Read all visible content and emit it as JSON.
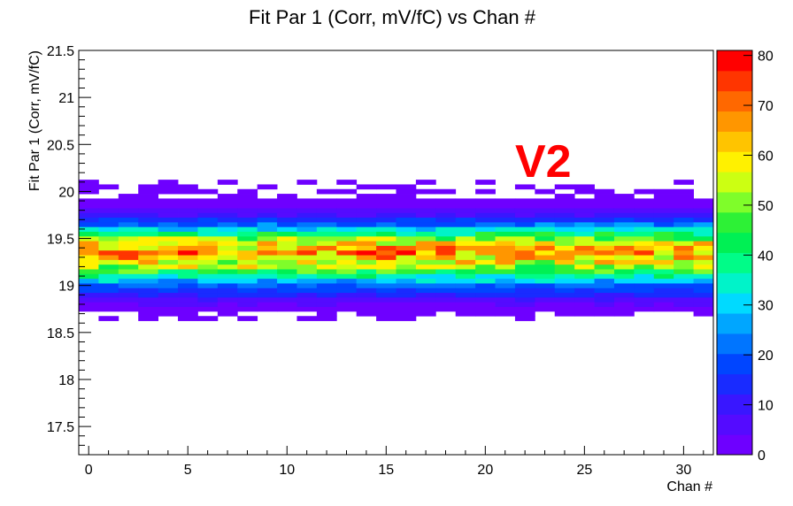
{
  "chart_data": {
    "type": "heatmap",
    "title": "Fit Par 1 (Corr, mV/fC) vs Chan #",
    "xlabel": "Chan #",
    "ylabel": "Fit Par 1 (Corr, mV/fC)",
    "annotation": "V2",
    "xlim": [
      -0.5,
      31.5
    ],
    "ylim": [
      17.2,
      21.5
    ],
    "x_ticks": [
      0,
      5,
      10,
      15,
      20,
      25,
      30
    ],
    "y_ticks": [
      17.5,
      18,
      18.5,
      19,
      19.5,
      20,
      20.5,
      21,
      21.5
    ],
    "colorbar": {
      "min": 0,
      "max": 81,
      "ticks": [
        0,
        10,
        20,
        30,
        40,
        50,
        60,
        70,
        80
      ]
    },
    "y_bins": [
      18.65,
      18.7,
      18.75,
      18.8,
      18.85,
      18.9,
      18.95,
      19.0,
      19.05,
      19.1,
      19.15,
      19.2,
      19.25,
      19.3,
      19.35,
      19.4,
      19.45,
      19.5,
      19.55,
      19.6,
      19.65,
      19.7,
      19.75,
      19.8,
      19.85,
      19.9,
      19.95,
      20.0,
      20.05,
      20.1
    ],
    "bin_profile": [
      0.5,
      1,
      2,
      4,
      7,
      12,
      16,
      20,
      28,
      36,
      44,
      52,
      58,
      63,
      65,
      63,
      58,
      50,
      40,
      31,
      22,
      15,
      9,
      6,
      3,
      2,
      1,
      1,
      0.5,
      0.3
    ],
    "hot_cells": [
      [
        1,
        19.35,
        75
      ],
      [
        3,
        19.35,
        70
      ],
      [
        5,
        19.35,
        78
      ],
      [
        9,
        19.35,
        72
      ],
      [
        12,
        19.4,
        72
      ],
      [
        13,
        19.35,
        75
      ],
      [
        14,
        19.35,
        80
      ],
      [
        16,
        19.35,
        78
      ],
      [
        18,
        19.35,
        73
      ],
      [
        23,
        19.4,
        70
      ],
      [
        26,
        19.35,
        72
      ],
      [
        28,
        19.35,
        76
      ]
    ]
  }
}
